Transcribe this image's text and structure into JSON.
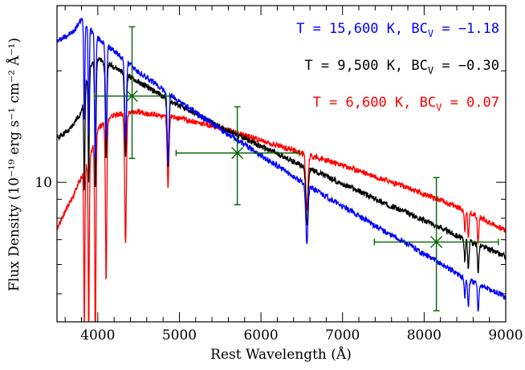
{
  "chart_data": {
    "type": "line",
    "xlabel": "Rest Wavelength (Å)",
    "ylabel": "Flux Density (10⁻¹⁹ erg s⁻¹ cm⁻² Å⁻¹)",
    "xlim": [
      3500,
      9000
    ],
    "ylim": [
      4.2,
      30
    ],
    "yscale": "log",
    "x_ticks": [
      4000,
      5000,
      6000,
      7000,
      8000,
      9000
    ],
    "x_tick_labels": [
      "4000",
      "5000",
      "6000",
      "7000",
      "8000",
      "9000"
    ],
    "y_ticks": [
      10
    ],
    "y_tick_labels": [
      "10"
    ],
    "legend": [
      {
        "text": "T = 15,600 K, BC",
        "sub": "V",
        "value": " = −1.18",
        "color": "#0000ff"
      },
      {
        "text": "T = 9,500 K, BC",
        "sub": "V",
        "value": " = −0.30",
        "color": "#000000"
      },
      {
        "text": "T = 6,600 K, BC",
        "sub": "V",
        "value": " = 0.07",
        "color": "#ff0000"
      }
    ],
    "series": [
      {
        "color": "#0000ff",
        "x": [
          3500,
          3700,
          3800,
          4000,
          4500,
          5000,
          5500,
          6000,
          6500,
          7000,
          7500,
          8000,
          8500,
          9000
        ],
        "y": [
          24.0,
          25.5,
          27.5,
          24.5,
          19.8,
          16.5,
          13.9,
          11.8,
          10.0,
          8.6,
          7.4,
          6.4,
          5.5,
          4.9
        ]
      },
      {
        "color": "#000000",
        "x": [
          3500,
          3650,
          3800,
          3900,
          4000,
          4200,
          4500,
          5000,
          5500,
          6000,
          6500,
          7000,
          7500,
          8000,
          8500,
          9000
        ],
        "y": [
          13.2,
          13.8,
          15.5,
          20.5,
          21.5,
          20.5,
          18.6,
          16.1,
          14.1,
          12.5,
          11.1,
          9.9,
          8.8,
          7.9,
          7.0,
          6.3
        ]
      },
      {
        "color": "#ff0000",
        "x": [
          3500,
          3700,
          3900,
          4000,
          4200,
          4500,
          5000,
          5500,
          6000,
          6500,
          7000,
          7500,
          8000,
          8500,
          9000
        ],
        "y": [
          7.5,
          9.2,
          11.5,
          14.0,
          15.2,
          15.5,
          14.9,
          14.0,
          13.0,
          12.0,
          11.1,
          10.2,
          9.3,
          8.4,
          7.4
        ]
      }
    ],
    "absorption_lines": [
      {
        "x": 3835,
        "depth": 0.45,
        "w": 10
      },
      {
        "x": 3889,
        "depth": 0.5,
        "w": 10
      },
      {
        "x": 3970,
        "depth": 0.55,
        "w": 12
      },
      {
        "x": 4102,
        "depth": 0.45,
        "w": 14
      },
      {
        "x": 4340,
        "depth": 0.4,
        "w": 16
      },
      {
        "x": 4861,
        "depth": 0.35,
        "w": 16
      },
      {
        "x": 6563,
        "depth": 0.3,
        "w": 20
      },
      {
        "x": 8498,
        "depth": 0.12,
        "w": 10
      },
      {
        "x": 8542,
        "depth": 0.15,
        "w": 12
      },
      {
        "x": 8662,
        "depth": 0.15,
        "w": 12
      }
    ],
    "photometry": [
      {
        "x": 4420,
        "y": 17.1,
        "xerr": [
          3960,
          4880
        ],
        "yerr": [
          11.6,
          26.3
        ],
        "color": "#006400"
      },
      {
        "x": 5710,
        "y": 12.0,
        "xerr": [
          4960,
          6470
        ],
        "yerr": [
          8.7,
          16.0
        ],
        "color": "#006400"
      },
      {
        "x": 8150,
        "y": 6.9,
        "xerr": [
          7390,
          8910
        ],
        "yerr": [
          4.5,
          10.3
        ],
        "color": "#006400"
      }
    ]
  }
}
